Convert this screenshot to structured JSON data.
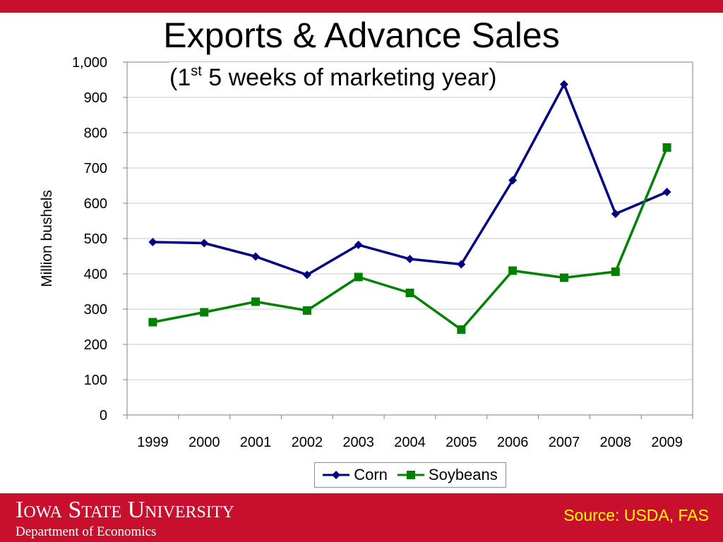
{
  "slide": {
    "title": "Exports & Advance Sales",
    "subtitle_prefix": "(1",
    "subtitle_sup": "st",
    "subtitle_suffix": " 5 weeks of marketing year)",
    "footer_university": "Iowa State University",
    "footer_department": "Department of Economics",
    "source": "Source: USDA, FAS",
    "colors": {
      "accent_red": "#c8102e",
      "source_text": "#ffff00"
    }
  },
  "chart_data": {
    "type": "line",
    "title": "Exports & Advance Sales",
    "subtitle": "(1st 5 weeks of marketing year)",
    "xlabel": "",
    "ylabel": "Million bushels",
    "categories": [
      "1999",
      "2000",
      "2001",
      "2002",
      "2003",
      "2004",
      "2005",
      "2006",
      "2007",
      "2008",
      "2009"
    ],
    "ylim": [
      0,
      1000
    ],
    "yticks": [
      0,
      100,
      200,
      300,
      400,
      500,
      600,
      700,
      800,
      900,
      1000
    ],
    "ytick_labels": [
      "0",
      "100",
      "200",
      "300",
      "400",
      "500",
      "600",
      "700",
      "800",
      "900",
      "1,000"
    ],
    "grid": true,
    "legend": "bottom",
    "series": [
      {
        "name": "Corn",
        "color": "#000080",
        "marker": "diamond",
        "values": [
          490,
          487,
          449,
          397,
          482,
          442,
          427,
          665,
          937,
          570,
          632
        ]
      },
      {
        "name": "Soybeans",
        "color": "#008000",
        "marker": "square",
        "values": [
          263,
          291,
          321,
          296,
          391,
          346,
          242,
          409,
          389,
          406,
          758
        ]
      }
    ]
  }
}
